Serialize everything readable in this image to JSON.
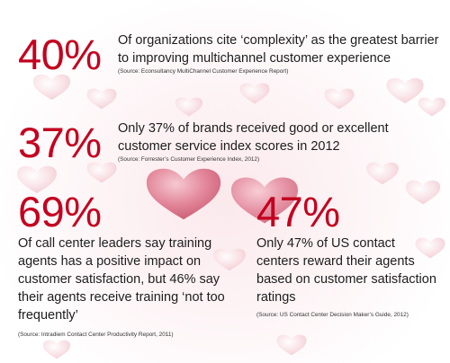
{
  "stats": [
    {
      "percent": "40%",
      "text": "Of organizations cite ‘complexity’ as the greatest barrier to improving multichannel customer experience",
      "source": "(Source: Econsultancy MultiChannel Customer Experience Report)"
    },
    {
      "percent": "37%",
      "text": "Only 37% of brands received good or excellent customer service  index scores in 2012",
      "source": "(Source: Forrester’s Customer Experience Index, 2012)"
    },
    {
      "percent": "69%",
      "text": "Of call center leaders say training agents has a positive impact on customer satisfaction, but 46% say their agents receive training ‘not too frequently’",
      "source": "(Source: Intradiem Contact Center Productivity Report, 2011)"
    },
    {
      "percent": "47%",
      "text": "Only 47% of US contact centers reward their agents based on customer satisfaction ratings",
      "source": "(Source: US Contact Center Decision Maker’s Guide, 2012)"
    }
  ],
  "colors": {
    "accent": "#c4001f",
    "heart_light": "#f7d3da",
    "heart_main": "#d9687f"
  }
}
